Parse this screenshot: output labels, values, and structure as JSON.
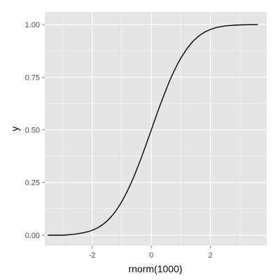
{
  "chart_data": {
    "type": "line",
    "title": "",
    "xlabel": "rnorm(1000)",
    "ylabel": "y",
    "xlim": [
      -3.6,
      3.9
    ],
    "ylim": [
      -0.05,
      1.06
    ],
    "x_ticks": [
      -2,
      0,
      2
    ],
    "x_tick_labels": [
      "-2",
      "0",
      "2"
    ],
    "y_ticks": [
      0,
      0.25,
      0.5,
      0.75,
      1
    ],
    "y_tick_labels": [
      "0.00",
      "0.25",
      "0.50",
      "0.75",
      "1.00"
    ],
    "grid": true,
    "legend": "none",
    "colors": {
      "panel": "#e5e5e5",
      "grid": "#ffffff",
      "line": "#000000"
    },
    "series": [
      {
        "x": [
          -3.5,
          -3.0,
          -2.7,
          -2.5,
          -2.3,
          -2.1,
          -2.0,
          -1.9,
          -1.8,
          -1.7,
          -1.6,
          -1.5,
          -1.4,
          -1.3,
          -1.2,
          -1.1,
          -1.0,
          -0.9,
          -0.8,
          -0.7,
          -0.6,
          -0.5,
          -0.4,
          -0.3,
          -0.2,
          -0.1,
          0.0,
          0.1,
          0.2,
          0.3,
          0.4,
          0.5,
          0.6,
          0.7,
          0.8,
          0.9,
          1.0,
          1.2,
          1.4,
          1.6,
          1.8,
          2.0,
          2.2,
          2.5,
          2.8,
          3.1,
          3.6
        ],
        "y": [
          0.0,
          0.0,
          0.003,
          0.006,
          0.011,
          0.018,
          0.023,
          0.029,
          0.036,
          0.045,
          0.055,
          0.067,
          0.081,
          0.097,
          0.115,
          0.136,
          0.159,
          0.184,
          0.212,
          0.242,
          0.274,
          0.309,
          0.345,
          0.382,
          0.421,
          0.46,
          0.5,
          0.54,
          0.579,
          0.618,
          0.655,
          0.691,
          0.726,
          0.758,
          0.788,
          0.816,
          0.841,
          0.885,
          0.919,
          0.945,
          0.964,
          0.977,
          0.986,
          0.994,
          0.997,
          0.999,
          1.0
        ]
      }
    ]
  }
}
